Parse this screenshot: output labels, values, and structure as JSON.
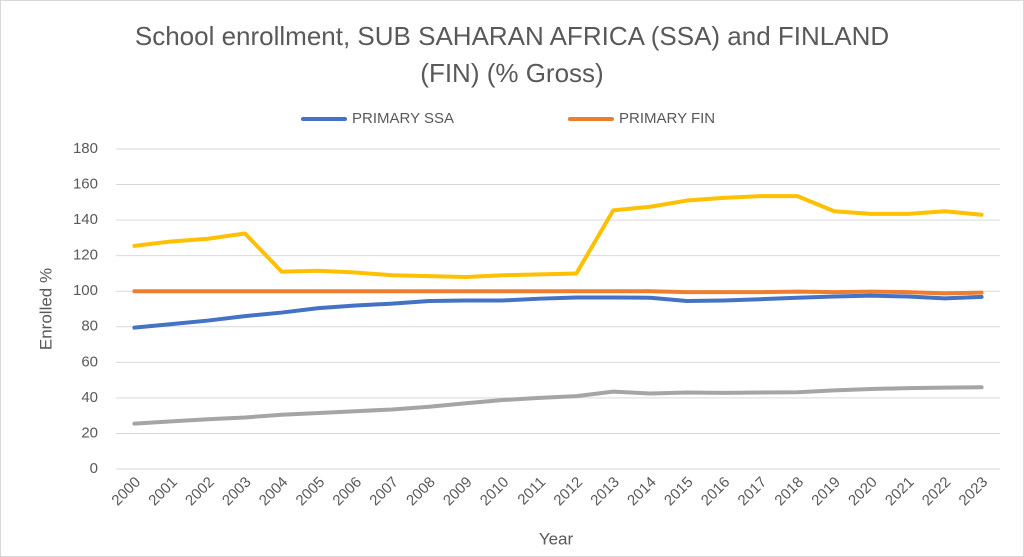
{
  "chart_data": {
    "type": "line",
    "title": "School enrollment, SUB SAHARAN AFRICA (SSA) and FINLAND (FIN) (% Gross)",
    "x_label": "Year",
    "y_label": "Enrolled %",
    "categories": [
      "2000",
      "2001",
      "2002",
      "2003",
      "2004",
      "2005",
      "2006",
      "2007",
      "2008",
      "2009",
      "2010",
      "2011",
      "2012",
      "2013",
      "2014",
      "2015",
      "2016",
      "2017",
      "2018",
      "2019",
      "2020",
      "2021",
      "2022",
      "2023"
    ],
    "series": [
      {
        "name": "PRIMARY SSA",
        "color": "#4472c4",
        "values": [
          79.5,
          81.5,
          83.5,
          86,
          88,
          90.5,
          92,
          93,
          94.5,
          94.8,
          94.8,
          95.8,
          96.5,
          96.5,
          96.3,
          94.5,
          94.8,
          95.5,
          96.3,
          97,
          97.5,
          97,
          96,
          96.8
        ]
      },
      {
        "name": "PRIMARY FIN",
        "color": "#ed7d31",
        "values": [
          100,
          100,
          100,
          100,
          100,
          100,
          100,
          100,
          100,
          100,
          100,
          100,
          100,
          100,
          100,
          99.5,
          99.5,
          99.5,
          99.8,
          99.5,
          99.8,
          99.5,
          98.8,
          99.2
        ]
      },
      {
        "color": "#a5a5a5",
        "values": [
          25.5,
          26.8,
          28,
          29,
          30.5,
          31.5,
          32.5,
          33.5,
          35,
          37,
          38.8,
          40,
          41,
          43.5,
          42.5,
          43,
          42.8,
          43,
          43.2,
          44.2,
          45,
          45.5,
          45.8,
          46
        ]
      },
      {
        "color": "#ffc000",
        "values": [
          125.5,
          128,
          129.5,
          132.5,
          111,
          111.5,
          110.5,
          109,
          108.5,
          108,
          109,
          109.5,
          110,
          145.5,
          147.5,
          151,
          152.5,
          153.5,
          153.5,
          145,
          143.5,
          143.5,
          145,
          143
        ]
      }
    ],
    "ylim": [
      0,
      180
    ],
    "yticks": [
      0,
      20,
      40,
      60,
      80,
      100,
      120,
      140,
      160,
      180
    ],
    "grid": true,
    "legend": "top"
  }
}
